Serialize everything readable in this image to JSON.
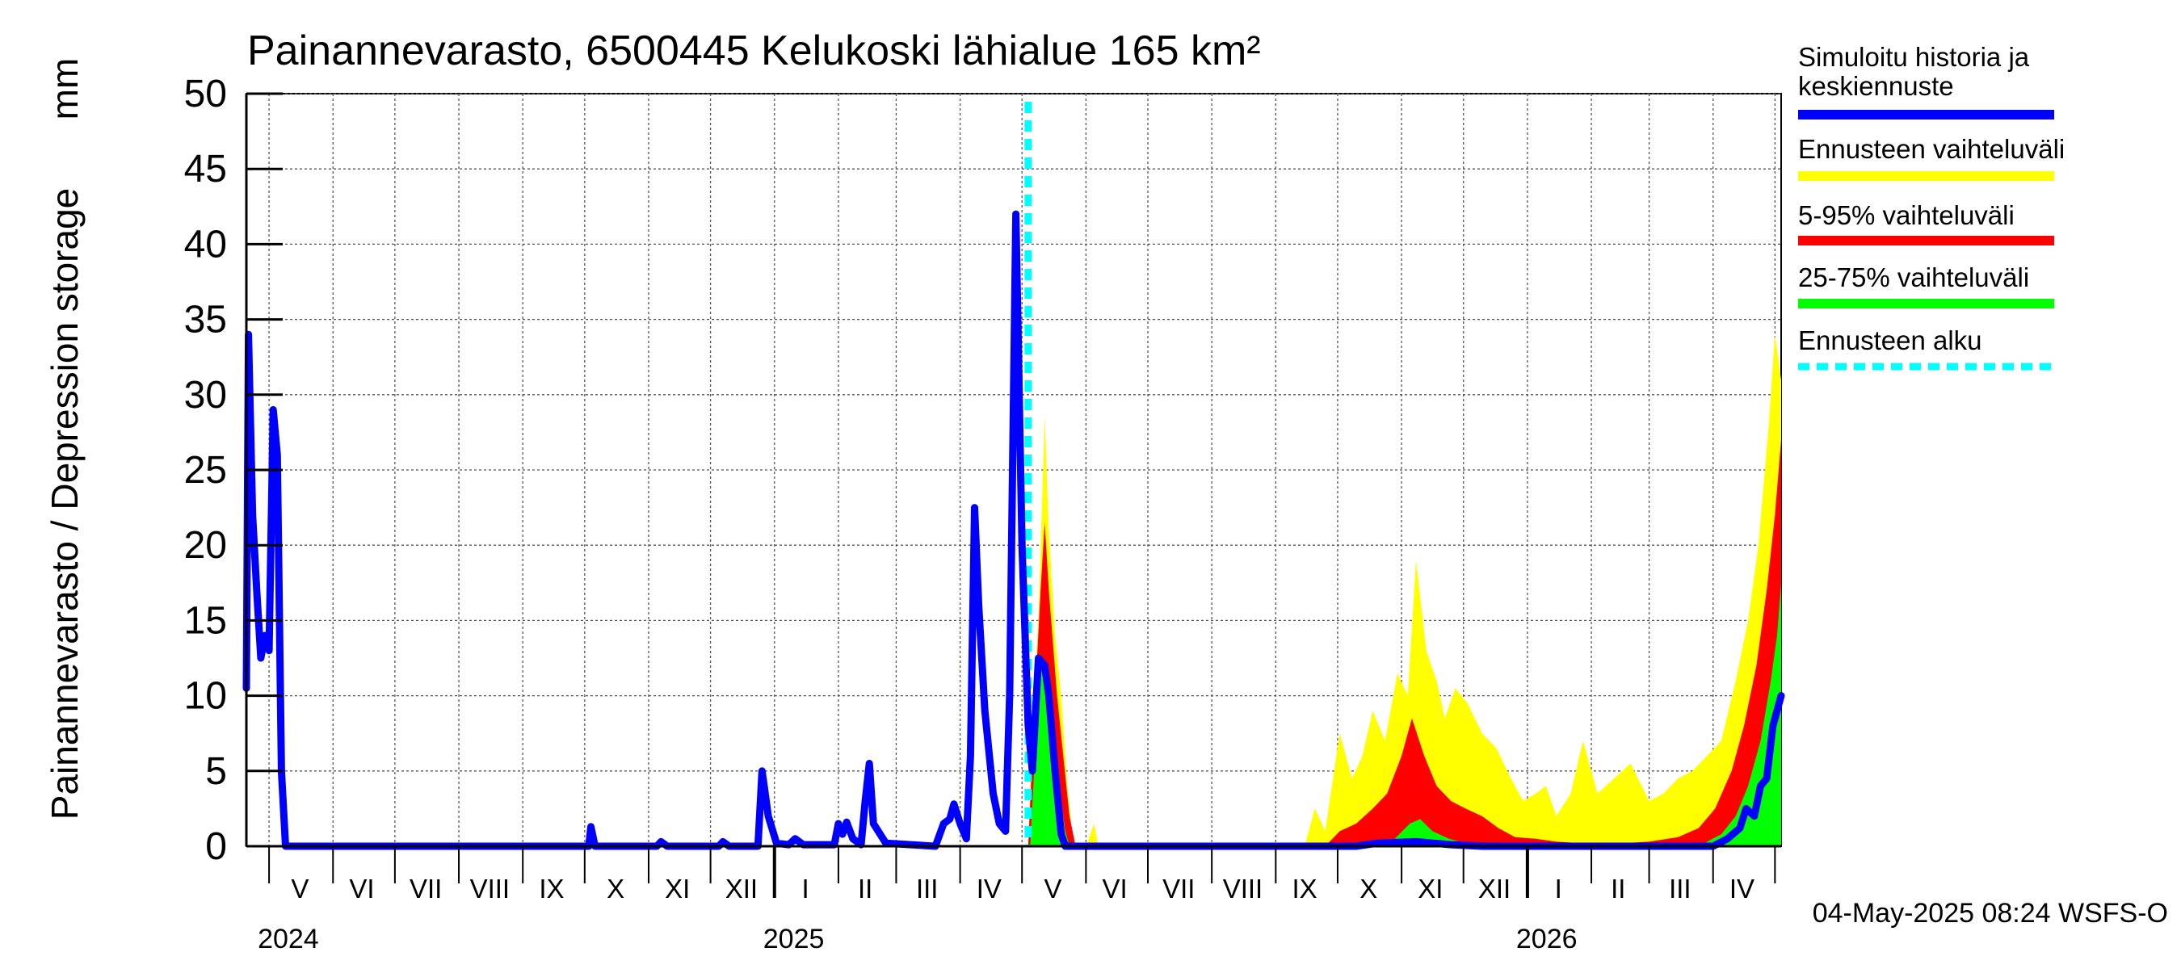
{
  "chart_data": {
    "type": "area",
    "title": "Painannevarasto, 6500445 Kelukoski lähialue 165 km²",
    "ylabel": "Painannevarasto / Depression storage",
    "yunit": "mm",
    "ylim": [
      0,
      50
    ],
    "yticks": [
      0,
      5,
      10,
      15,
      20,
      25,
      30,
      35,
      40,
      45,
      50
    ],
    "xlim": [
      "2024-04-20",
      "2026-05-04"
    ],
    "grid": true,
    "month_labels": [
      {
        "label": "V",
        "date": "2024-05-16"
      },
      {
        "label": "VI",
        "date": "2024-06-15"
      },
      {
        "label": "VII",
        "date": "2024-07-16"
      },
      {
        "label": "VIII",
        "date": "2024-08-16"
      },
      {
        "label": "IX",
        "date": "2024-09-15"
      },
      {
        "label": "X",
        "date": "2024-10-16"
      },
      {
        "label": "XI",
        "date": "2024-11-15"
      },
      {
        "label": "XII",
        "date": "2024-12-16"
      },
      {
        "label": "I",
        "date": "2025-01-16"
      },
      {
        "label": "II",
        "date": "2025-02-14"
      },
      {
        "label": "III",
        "date": "2025-03-16"
      },
      {
        "label": "IV",
        "date": "2025-04-15"
      },
      {
        "label": "V",
        "date": "2025-05-16"
      },
      {
        "label": "VI",
        "date": "2025-06-15"
      },
      {
        "label": "VII",
        "date": "2025-07-16"
      },
      {
        "label": "VIII",
        "date": "2025-08-16"
      },
      {
        "label": "IX",
        "date": "2025-09-15"
      },
      {
        "label": "X",
        "date": "2025-10-16"
      },
      {
        "label": "XI",
        "date": "2025-11-15"
      },
      {
        "label": "XII",
        "date": "2025-12-16"
      },
      {
        "label": "I",
        "date": "2026-01-16"
      },
      {
        "label": "II",
        "date": "2026-02-14"
      },
      {
        "label": "III",
        "date": "2026-03-16"
      },
      {
        "label": "IV",
        "date": "2026-04-15"
      }
    ],
    "year_labels": [
      {
        "label": "2024",
        "date": "2024-05-01"
      },
      {
        "label": "2025",
        "date": "2025-01-01"
      },
      {
        "label": "2026",
        "date": "2026-01-01"
      }
    ],
    "forecast_start": "2025-05-04",
    "series": [
      {
        "name": "Ennusteen vaihteluväli",
        "color": "#ffff00",
        "kind": "band",
        "points": [
          [
            "2025-05-04",
            0
          ],
          [
            "2025-05-06",
            8
          ],
          [
            "2025-05-09",
            15
          ],
          [
            "2025-05-12",
            28.5
          ],
          [
            "2025-05-14",
            21
          ],
          [
            "2025-05-17",
            14
          ],
          [
            "2025-05-20",
            10
          ],
          [
            "2025-05-23",
            4
          ],
          [
            "2025-05-26",
            0
          ],
          [
            "2025-06-01",
            0
          ],
          [
            "2025-06-05",
            1.5
          ],
          [
            "2025-06-07",
            0
          ],
          [
            "2025-09-15",
            0
          ],
          [
            "2025-09-20",
            2.5
          ],
          [
            "2025-09-25",
            1
          ],
          [
            "2025-10-02",
            7.5
          ],
          [
            "2025-10-08",
            4.5
          ],
          [
            "2025-10-13",
            6
          ],
          [
            "2025-10-18",
            9
          ],
          [
            "2025-10-24",
            7
          ],
          [
            "2025-10-30",
            11.5
          ],
          [
            "2025-11-04",
            10
          ],
          [
            "2025-11-08",
            19
          ],
          [
            "2025-11-13",
            13
          ],
          [
            "2025-11-18",
            11
          ],
          [
            "2025-11-22",
            8.5
          ],
          [
            "2025-11-27",
            10.5
          ],
          [
            "2025-12-03",
            9.5
          ],
          [
            "2025-12-10",
            7.5
          ],
          [
            "2025-12-17",
            6.5
          ],
          [
            "2025-12-24",
            4.5
          ],
          [
            "2025-12-30",
            3
          ],
          [
            "2026-01-05",
            3.5
          ],
          [
            "2026-01-10",
            4
          ],
          [
            "2026-01-15",
            2
          ],
          [
            "2026-01-22",
            3.5
          ],
          [
            "2026-01-28",
            7
          ],
          [
            "2026-02-04",
            3.5
          ],
          [
            "2026-02-12",
            4.5
          ],
          [
            "2026-02-20",
            5.5
          ],
          [
            "2026-03-01",
            3
          ],
          [
            "2026-03-08",
            3.5
          ],
          [
            "2026-03-15",
            4.5
          ],
          [
            "2026-03-22",
            5
          ],
          [
            "2026-03-29",
            6
          ],
          [
            "2026-04-05",
            7
          ],
          [
            "2026-04-12",
            11
          ],
          [
            "2026-04-18",
            15
          ],
          [
            "2026-04-23",
            20
          ],
          [
            "2026-04-28",
            28
          ],
          [
            "2026-05-01",
            34
          ],
          [
            "2026-05-04",
            31
          ]
        ]
      },
      {
        "name": "5-95% vaihteluväli",
        "color": "#ff0000",
        "kind": "band",
        "points": [
          [
            "2025-05-04",
            0
          ],
          [
            "2025-05-07",
            9
          ],
          [
            "2025-05-10",
            17
          ],
          [
            "2025-05-12",
            21.5
          ],
          [
            "2025-05-14",
            17
          ],
          [
            "2025-05-18",
            10
          ],
          [
            "2025-05-21",
            6
          ],
          [
            "2025-05-24",
            2
          ],
          [
            "2025-05-27",
            0
          ],
          [
            "2025-09-25",
            0
          ],
          [
            "2025-10-02",
            1
          ],
          [
            "2025-10-10",
            1.5
          ],
          [
            "2025-10-18",
            2.5
          ],
          [
            "2025-10-25",
            3.5
          ],
          [
            "2025-11-01",
            6
          ],
          [
            "2025-11-06",
            8.5
          ],
          [
            "2025-11-12",
            6
          ],
          [
            "2025-11-18",
            4
          ],
          [
            "2025-11-25",
            3
          ],
          [
            "2025-12-02",
            2.5
          ],
          [
            "2025-12-10",
            2
          ],
          [
            "2025-12-18",
            1.2
          ],
          [
            "2025-12-26",
            0.6
          ],
          [
            "2026-01-05",
            0.5
          ],
          [
            "2026-01-15",
            0.3
          ],
          [
            "2026-01-28",
            0.2
          ],
          [
            "2026-02-15",
            0.2
          ],
          [
            "2026-03-01",
            0.3
          ],
          [
            "2026-03-15",
            0.6
          ],
          [
            "2026-03-25",
            1.2
          ],
          [
            "2026-04-02",
            2.5
          ],
          [
            "2026-04-10",
            5
          ],
          [
            "2026-04-16",
            8
          ],
          [
            "2026-04-22",
            12
          ],
          [
            "2026-04-27",
            17
          ],
          [
            "2026-05-01",
            22
          ],
          [
            "2026-05-04",
            27
          ]
        ]
      },
      {
        "name": "25-75% vaihteluväli",
        "color": "#00ff00",
        "kind": "band",
        "points": [
          [
            "2025-05-05",
            0
          ],
          [
            "2025-05-08",
            8
          ],
          [
            "2025-05-11",
            12.5
          ],
          [
            "2025-05-13",
            10
          ],
          [
            "2025-05-16",
            7
          ],
          [
            "2025-05-19",
            4
          ],
          [
            "2025-05-22",
            1
          ],
          [
            "2025-05-24",
            0
          ],
          [
            "2025-10-20",
            0
          ],
          [
            "2025-10-28",
            0.4
          ],
          [
            "2025-11-05",
            1.5
          ],
          [
            "2025-11-10",
            1.8
          ],
          [
            "2025-11-16",
            1.0
          ],
          [
            "2025-11-24",
            0.5
          ],
          [
            "2025-12-02",
            0.2
          ],
          [
            "2025-12-10",
            0
          ],
          [
            "2026-03-25",
            0
          ],
          [
            "2026-04-05",
            0.8
          ],
          [
            "2026-04-12",
            2
          ],
          [
            "2026-04-18",
            4
          ],
          [
            "2026-04-24",
            7
          ],
          [
            "2026-04-29",
            11
          ],
          [
            "2026-05-02",
            14
          ],
          [
            "2026-05-04",
            17.5
          ]
        ]
      },
      {
        "name": "Simuloitu historia ja keskiennuste",
        "color": "#0000ff",
        "kind": "line",
        "points": [
          [
            "2024-04-20",
            10.5
          ],
          [
            "2024-04-21",
            34
          ],
          [
            "2024-04-23",
            22
          ],
          [
            "2024-04-25",
            17
          ],
          [
            "2024-04-27",
            12.5
          ],
          [
            "2024-04-29",
            14
          ],
          [
            "2024-05-01",
            13
          ],
          [
            "2024-05-03",
            29
          ],
          [
            "2024-05-05",
            26
          ],
          [
            "2024-05-07",
            5
          ],
          [
            "2024-05-09",
            0
          ],
          [
            "2024-10-03",
            0
          ],
          [
            "2024-10-04",
            1.3
          ],
          [
            "2024-10-06",
            0
          ],
          [
            "2024-11-05",
            0
          ],
          [
            "2024-11-07",
            0.3
          ],
          [
            "2024-11-10",
            0
          ],
          [
            "2024-12-05",
            0
          ],
          [
            "2024-12-07",
            0.3
          ],
          [
            "2024-12-10",
            0
          ],
          [
            "2024-12-24",
            0
          ],
          [
            "2024-12-26",
            5
          ],
          [
            "2024-12-29",
            2
          ],
          [
            "2025-01-02",
            0.2
          ],
          [
            "2025-01-08",
            0.1
          ],
          [
            "2025-01-11",
            0.5
          ],
          [
            "2025-01-15",
            0.1
          ],
          [
            "2025-01-30",
            0.1
          ],
          [
            "2025-02-01",
            1.5
          ],
          [
            "2025-02-03",
            0.8
          ],
          [
            "2025-02-05",
            1.6
          ],
          [
            "2025-02-08",
            0.5
          ],
          [
            "2025-02-12",
            0.1
          ],
          [
            "2025-02-14",
            3
          ],
          [
            "2025-02-16",
            5.5
          ],
          [
            "2025-02-18",
            1.5
          ],
          [
            "2025-02-24",
            0.2
          ],
          [
            "2025-03-20",
            0
          ],
          [
            "2025-03-24",
            1.5
          ],
          [
            "2025-03-27",
            1.8
          ],
          [
            "2025-03-29",
            2.8
          ],
          [
            "2025-04-01",
            1.5
          ],
          [
            "2025-04-04",
            0.5
          ],
          [
            "2025-04-06",
            6
          ],
          [
            "2025-04-08",
            22.5
          ],
          [
            "2025-04-10",
            16
          ],
          [
            "2025-04-13",
            9
          ],
          [
            "2025-04-17",
            3.5
          ],
          [
            "2025-04-20",
            1.5
          ],
          [
            "2025-04-23",
            1
          ],
          [
            "2025-04-25",
            10
          ],
          [
            "2025-04-28",
            42
          ],
          [
            "2025-05-01",
            20
          ],
          [
            "2025-05-04",
            8
          ],
          [
            "2025-05-06",
            5
          ],
          [
            "2025-05-09",
            12.5
          ],
          [
            "2025-05-12",
            12
          ],
          [
            "2025-05-14",
            10
          ],
          [
            "2025-05-17",
            5
          ],
          [
            "2025-05-20",
            0.8
          ],
          [
            "2025-05-22",
            0
          ],
          [
            "2025-10-10",
            0
          ],
          [
            "2025-10-20",
            0.2
          ],
          [
            "2025-11-08",
            0.3
          ],
          [
            "2025-11-25",
            0.1
          ],
          [
            "2025-12-10",
            0
          ],
          [
            "2026-04-01",
            0
          ],
          [
            "2026-04-08",
            0.5
          ],
          [
            "2026-04-14",
            1.2
          ],
          [
            "2026-04-17",
            2.5
          ],
          [
            "2026-04-21",
            2
          ],
          [
            "2026-04-24",
            4
          ],
          [
            "2026-04-27",
            4.5
          ],
          [
            "2026-04-30",
            8
          ],
          [
            "2026-05-02",
            9
          ],
          [
            "2026-05-04",
            10
          ]
        ]
      }
    ],
    "legend": {
      "position": "right",
      "items": [
        {
          "label": "Simuloitu historia ja\nkeskiennuste",
          "color": "#0000ff",
          "style": "solid"
        },
        {
          "label": "Ennusteen vaihteluväli",
          "color": "#ffff00",
          "style": "solid"
        },
        {
          "label": "5-95% vaihteluväli",
          "color": "#ff0000",
          "style": "solid"
        },
        {
          "label": "25-75% vaihteluväli",
          "color": "#00ff00",
          "style": "solid"
        },
        {
          "label": "Ennusteen alku",
          "color": "#00ffff",
          "style": "dashed"
        }
      ]
    },
    "footer": "04-May-2025 08:24 WSFS-O"
  }
}
